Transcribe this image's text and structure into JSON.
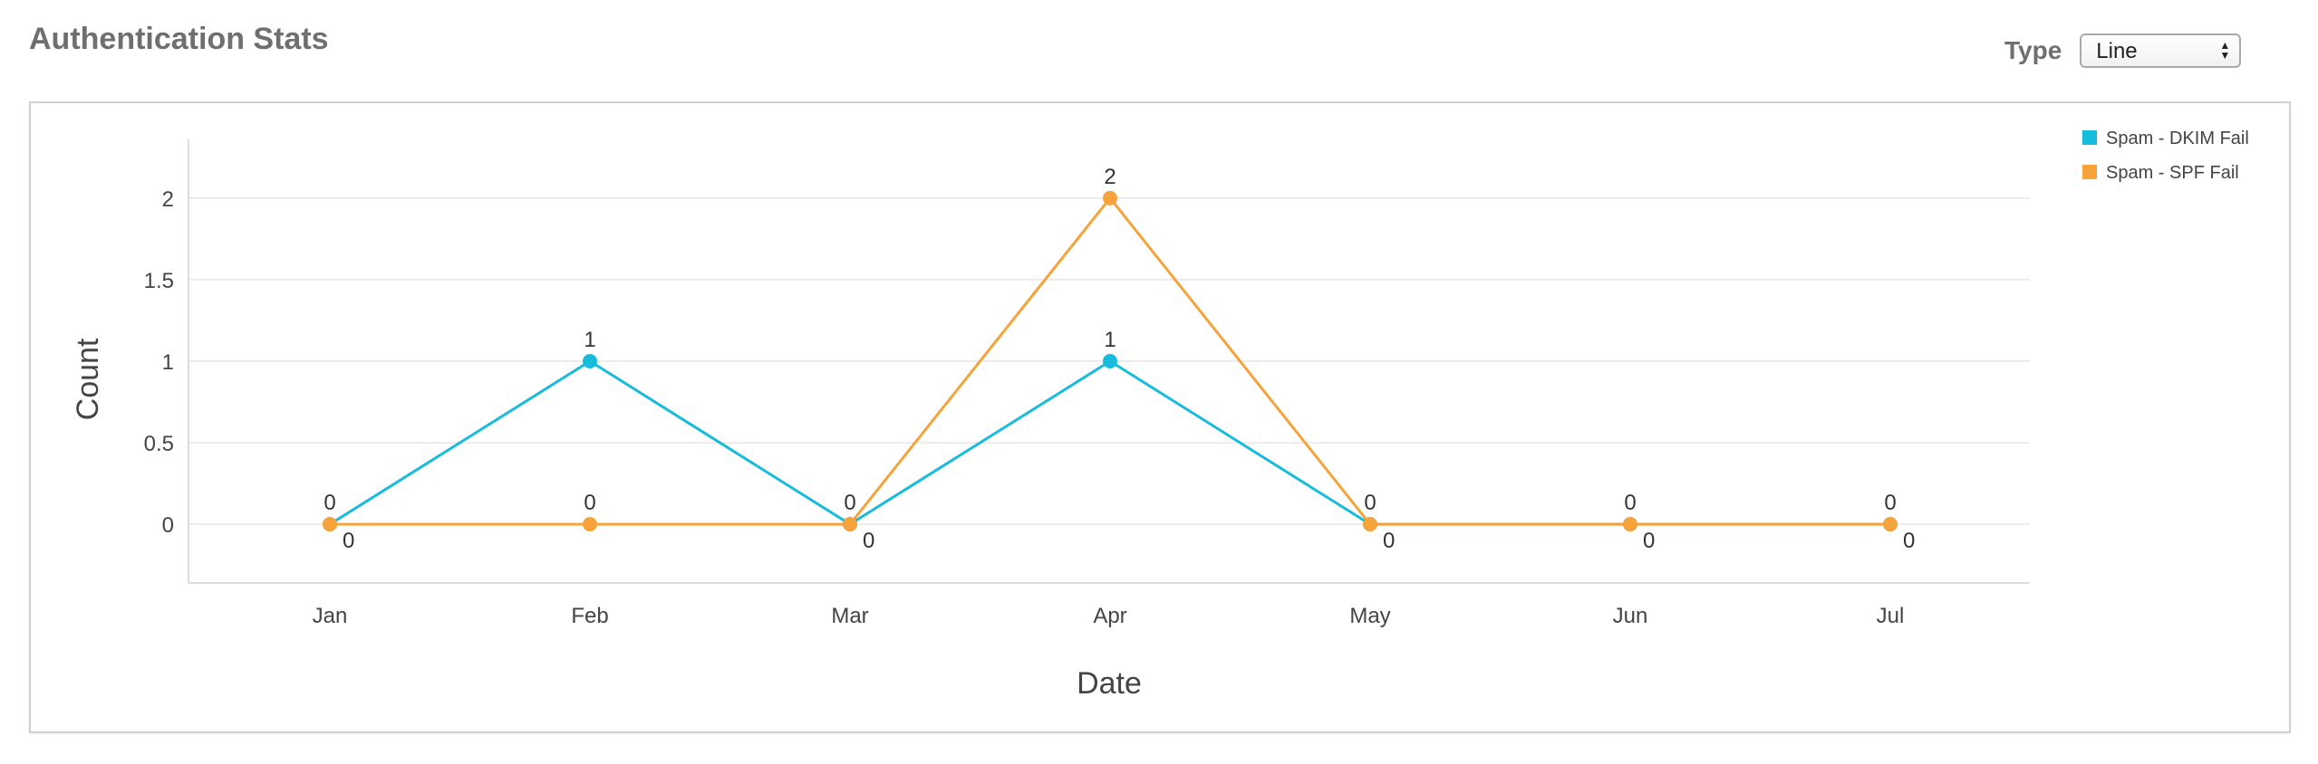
{
  "header": {
    "title": "Authentication Stats",
    "type_label": "Type",
    "type_value": "Line",
    "select_icon": "updown-arrows-icon"
  },
  "chart_data": {
    "type": "line",
    "title": "",
    "xlabel": "Date",
    "ylabel": "Count",
    "categories": [
      "Jan",
      "Feb",
      "Mar",
      "Apr",
      "May",
      "Jun",
      "Jul"
    ],
    "y_ticks": [
      "0",
      "0.5",
      "1",
      "1.5",
      "2"
    ],
    "ylim": [
      -0.36,
      2.36
    ],
    "grid": true,
    "legend_position": "top-right",
    "series": [
      {
        "name": "Spam - DKIM Fail",
        "color": "#17bcdc",
        "values": [
          0,
          1,
          0,
          1,
          0,
          0,
          0
        ],
        "data_labels": [
          "0",
          "1",
          "0",
          "1",
          "0",
          "0",
          "0"
        ]
      },
      {
        "name": "Spam - SPF Fail",
        "color": "#f5a33a",
        "values": [
          0,
          0,
          0,
          2,
          0,
          0,
          0
        ],
        "data_labels": [
          "0",
          "0",
          "0",
          "2",
          "0",
          "0",
          "0"
        ]
      }
    ]
  }
}
